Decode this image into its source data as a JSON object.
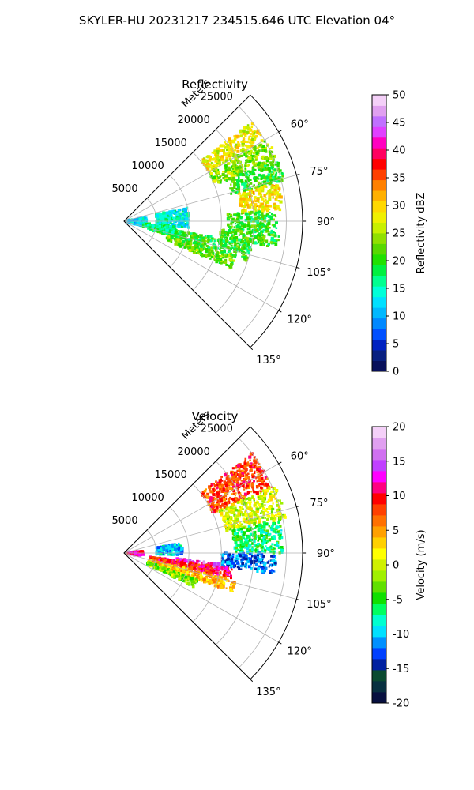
{
  "figure": {
    "suptitle": "SKYLER-HU  20231217  234515.646 UTC Elevation 04°"
  },
  "chart_data": [
    {
      "type": "heatmap",
      "projection": "polar-sector",
      "title": "Reflectivity",
      "radial_label": "Meters",
      "radial_ticks": [
        5000,
        10000,
        15000,
        20000,
        25000
      ],
      "rlim": [
        0,
        27500
      ],
      "angle_ticks": [
        "60°",
        "75°",
        "90°",
        "105°",
        "120°",
        "135°"
      ],
      "angle_values": [
        60,
        75,
        90,
        105,
        120,
        135
      ],
      "sector_deg": [
        45,
        135
      ],
      "grid": true,
      "colorbar": {
        "label": "Reflectivity dBZ",
        "min": 0,
        "max": 50,
        "ticks": [
          "0",
          "5",
          "10",
          "15",
          "20",
          "25",
          "30",
          "35",
          "40",
          "45",
          "50"
        ],
        "colors": [
          "#08105a",
          "#082080",
          "#0022c0",
          "#0050ff",
          "#0088ff",
          "#00b8ff",
          "#00e0ff",
          "#00ffd8",
          "#00ff90",
          "#00f040",
          "#20e000",
          "#58d800",
          "#90e000",
          "#c8f000",
          "#f0f000",
          "#ffd800",
          "#ffb000",
          "#ff8000",
          "#ff4000",
          "#ff0000",
          "#ff0060",
          "#ff00c0",
          "#e040ff",
          "#c070ff",
          "#e0a0f0",
          "#f4d0f8"
        ]
      },
      "echoes": [
        {
          "az": [
            52,
            60
          ],
          "r": [
            15000,
            25000
          ],
          "value": 28
        },
        {
          "az": [
            60,
            68
          ],
          "r": [
            15000,
            25500
          ],
          "value": 24
        },
        {
          "az": [
            68,
            76
          ],
          "r": [
            17000,
            25500
          ],
          "value": 20
        },
        {
          "az": [
            76,
            86
          ],
          "r": [
            18000,
            24500
          ],
          "value": 29
        },
        {
          "az": [
            86,
            95
          ],
          "r": [
            16000,
            23500
          ],
          "value": 20
        },
        {
          "az": [
            95,
            100
          ],
          "r": [
            15000,
            24000
          ],
          "value": 21
        },
        {
          "az": [
            100,
            108
          ],
          "r": [
            4000,
            20000
          ],
          "value": 20
        },
        {
          "az": [
            108,
            114
          ],
          "r": [
            7000,
            18000
          ],
          "value": 22
        },
        {
          "az": [
            78,
            96
          ],
          "r": [
            5000,
            10000
          ],
          "value": 14
        },
        {
          "az": [
            80,
            105
          ],
          "r": [
            0,
            3500
          ],
          "value": 13
        },
        {
          "az": [
            96,
            106
          ],
          "r": [
            3000,
            8000
          ],
          "value": 17
        }
      ]
    },
    {
      "type": "heatmap",
      "projection": "polar-sector",
      "title": "Velocity",
      "radial_label": "Meters",
      "radial_ticks": [
        5000,
        10000,
        15000,
        20000,
        25000
      ],
      "rlim": [
        0,
        27500
      ],
      "angle_ticks": [
        "60°",
        "75°",
        "90°",
        "105°",
        "120°",
        "135°"
      ],
      "angle_values": [
        60,
        75,
        90,
        105,
        120,
        135
      ],
      "sector_deg": [
        45,
        135
      ],
      "grid": true,
      "colorbar": {
        "label": "Velocity (m/s)",
        "min": -20,
        "max": 20,
        "ticks": [
          "-20",
          "-15",
          "-10",
          "-5",
          "0",
          "5",
          "10",
          "15",
          "20"
        ],
        "colors": [
          "#081040",
          "#083040",
          "#0a4a30",
          "#0020a0",
          "#0040ff",
          "#0090ff",
          "#00e0ff",
          "#00ffd0",
          "#00ff60",
          "#10e000",
          "#60e000",
          "#a0f000",
          "#d0f000",
          "#ffff00",
          "#ffd000",
          "#ffa000",
          "#ff7000",
          "#ff4000",
          "#ff0000",
          "#ff0080",
          "#ff00ff",
          "#c040ff",
          "#d070f0",
          "#e0a0f0",
          "#f4d0f8"
        ]
      },
      "echoes": [
        {
          "az": [
            52,
            66
          ],
          "r": [
            15000,
            25000
          ],
          "value": 8
        },
        {
          "az": [
            66,
            78
          ],
          "r": [
            16000,
            25500
          ],
          "value": 0
        },
        {
          "az": [
            78,
            90
          ],
          "r": [
            17000,
            24500
          ],
          "value": -6
        },
        {
          "az": [
            90,
            98
          ],
          "r": [
            15000,
            23500
          ],
          "value": -12
        },
        {
          "az": [
            96,
            100
          ],
          "r": [
            8000,
            15000
          ],
          "value": 14
        },
        {
          "az": [
            98,
            104
          ],
          "r": [
            4000,
            17000
          ],
          "value": 10
        },
        {
          "az": [
            104,
            110
          ],
          "r": [
            4000,
            18000
          ],
          "value": 4
        },
        {
          "az": [
            110,
            116
          ],
          "r": [
            4000,
            12000
          ],
          "value": -2
        },
        {
          "az": [
            80,
            92
          ],
          "r": [
            5000,
            9000
          ],
          "value": -10
        },
        {
          "az": [
            84,
            100
          ],
          "r": [
            0,
            3000
          ],
          "value": 12
        }
      ]
    }
  ]
}
